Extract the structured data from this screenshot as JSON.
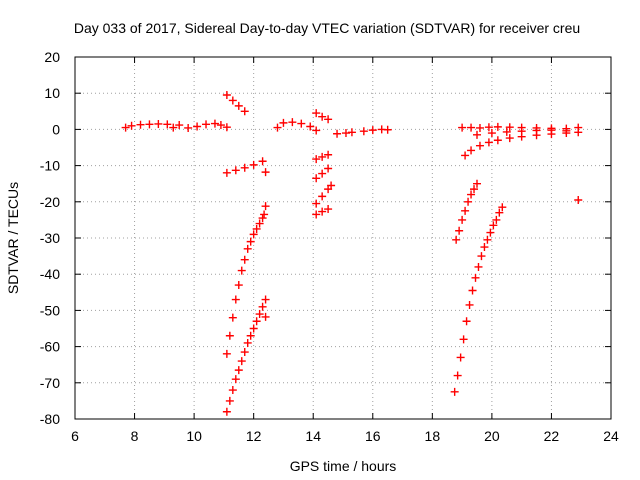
{
  "chart_data": {
    "type": "scatter",
    "title": "Day 033 of 2017, Sidereal Day-to-day VTEC variation (SDTVAR) for receiver creu",
    "xlabel": "GPS time / hours",
    "ylabel": "SDTVAR / TECUs",
    "xlim": [
      6,
      24
    ],
    "ylim": [
      -80,
      20
    ],
    "x_ticks": [
      "6",
      "8",
      "10",
      "12",
      "14",
      "16",
      "18",
      "20",
      "22",
      "24"
    ],
    "y_ticks": [
      "-80",
      "-70",
      "-60",
      "-50",
      "-40",
      "-30",
      "-20",
      "-10",
      "0",
      "10",
      "20"
    ],
    "grid": true,
    "marker": "+",
    "color": "#ff0000",
    "series": [
      {
        "points": [
          [
            7.7,
            0.5
          ],
          [
            7.9,
            1.0
          ],
          [
            8.2,
            1.3
          ],
          [
            8.5,
            1.4
          ],
          [
            8.8,
            1.5
          ],
          [
            9.1,
            1.4
          ],
          [
            9.3,
            0.5
          ],
          [
            9.5,
            1.2
          ],
          [
            9.8,
            0.4
          ],
          [
            10.1,
            0.8
          ],
          [
            10.4,
            1.4
          ],
          [
            10.7,
            1.6
          ],
          [
            10.9,
            1.2
          ],
          [
            11.1,
            0.6
          ],
          [
            11.1,
            9.5
          ],
          [
            11.3,
            8.0
          ],
          [
            11.5,
            6.5
          ],
          [
            11.7,
            5.0
          ],
          [
            11.1,
            -12.0
          ],
          [
            11.4,
            -11.3
          ],
          [
            11.7,
            -10.6
          ],
          [
            12.0,
            -9.8
          ],
          [
            12.3,
            -8.8
          ],
          [
            12.4,
            -11.8
          ],
          [
            12.4,
            -21.2
          ],
          [
            11.1,
            -62.0
          ],
          [
            11.2,
            -57.0
          ],
          [
            11.3,
            -52.0
          ],
          [
            11.4,
            -47.0
          ],
          [
            11.5,
            -43.0
          ],
          [
            11.6,
            -39.0
          ],
          [
            11.7,
            -36.0
          ],
          [
            11.8,
            -33.0
          ],
          [
            11.9,
            -31.0
          ],
          [
            12.0,
            -29.0
          ],
          [
            12.1,
            -27.5
          ],
          [
            12.2,
            -26.0
          ],
          [
            12.3,
            -24.5
          ],
          [
            12.35,
            -23.5
          ],
          [
            11.1,
            -78.0
          ],
          [
            11.2,
            -75.0
          ],
          [
            11.3,
            -72.0
          ],
          [
            11.4,
            -69.0
          ],
          [
            11.5,
            -66.5
          ],
          [
            11.6,
            -64.0
          ],
          [
            11.7,
            -61.5
          ],
          [
            11.8,
            -59.0
          ],
          [
            11.9,
            -57.0
          ],
          [
            12.0,
            -55.0
          ],
          [
            12.1,
            -53.0
          ],
          [
            12.2,
            -51.0
          ],
          [
            12.3,
            -49.0
          ],
          [
            12.4,
            -47.0
          ],
          [
            12.4,
            -51.8
          ],
          [
            12.8,
            0.5
          ],
          [
            13.0,
            1.8
          ],
          [
            13.3,
            2.0
          ],
          [
            13.6,
            1.6
          ],
          [
            13.9,
            0.8
          ],
          [
            14.1,
            -0.3
          ],
          [
            14.1,
            4.5
          ],
          [
            14.3,
            3.5
          ],
          [
            14.5,
            2.8
          ],
          [
            14.1,
            -8.2
          ],
          [
            14.3,
            -7.6
          ],
          [
            14.5,
            -7.0
          ],
          [
            14.1,
            -13.5
          ],
          [
            14.3,
            -12.2
          ],
          [
            14.5,
            -10.8
          ],
          [
            14.1,
            -20.5
          ],
          [
            14.3,
            -18.5
          ],
          [
            14.5,
            -16.5
          ],
          [
            14.6,
            -15.5
          ],
          [
            14.1,
            -23.5
          ],
          [
            14.3,
            -22.7
          ],
          [
            14.5,
            -22.0
          ],
          [
            14.8,
            -1.2
          ],
          [
            15.1,
            -1.0
          ],
          [
            15.3,
            -0.8
          ],
          [
            15.7,
            -0.5
          ],
          [
            16.0,
            -0.2
          ],
          [
            16.3,
            0.0
          ],
          [
            16.5,
            -0.1
          ],
          [
            18.8,
            -30.5
          ],
          [
            18.9,
            -28.0
          ],
          [
            19.0,
            -25.0
          ],
          [
            19.1,
            -22.5
          ],
          [
            19.2,
            -20.0
          ],
          [
            19.3,
            -18.0
          ],
          [
            19.4,
            -16.5
          ],
          [
            19.5,
            -15.0
          ],
          [
            18.75,
            -72.5
          ],
          [
            18.85,
            -68.0
          ],
          [
            18.95,
            -63.0
          ],
          [
            19.05,
            -58.0
          ],
          [
            19.15,
            -53.0
          ],
          [
            19.25,
            -48.5
          ],
          [
            19.35,
            -44.5
          ],
          [
            19.45,
            -41.0
          ],
          [
            19.55,
            -38.0
          ],
          [
            19.65,
            -35.0
          ],
          [
            19.75,
            -32.5
          ],
          [
            19.85,
            -30.5
          ],
          [
            19.95,
            -28.5
          ],
          [
            20.05,
            -26.5
          ],
          [
            20.15,
            -25.0
          ],
          [
            20.25,
            -23.0
          ],
          [
            20.35,
            -21.5
          ],
          [
            19.1,
            -7.2
          ],
          [
            19.3,
            -5.8
          ],
          [
            19.6,
            -4.5
          ],
          [
            19.9,
            -3.6
          ],
          [
            20.2,
            -3.0
          ],
          [
            20.6,
            -2.4
          ],
          [
            21.0,
            -2.0
          ],
          [
            21.5,
            -1.6
          ],
          [
            22.0,
            -1.3
          ],
          [
            22.5,
            -1.0
          ],
          [
            22.9,
            -0.8
          ],
          [
            19.0,
            0.5
          ],
          [
            19.3,
            0.5
          ],
          [
            19.6,
            0.4
          ],
          [
            19.9,
            0.6
          ],
          [
            20.2,
            0.7
          ],
          [
            20.6,
            0.6
          ],
          [
            21.0,
            0.5
          ],
          [
            21.5,
            0.4
          ],
          [
            22.0,
            0.3
          ],
          [
            22.5,
            0.2
          ],
          [
            22.9,
            0.5
          ],
          [
            19.5,
            -1.5
          ],
          [
            20.0,
            -1.0
          ],
          [
            20.5,
            -0.7
          ],
          [
            21.0,
            -0.5
          ],
          [
            21.5,
            -0.3
          ],
          [
            22.0,
            -0.2
          ],
          [
            22.5,
            -0.4
          ],
          [
            22.9,
            -19.5
          ]
        ]
      }
    ]
  }
}
